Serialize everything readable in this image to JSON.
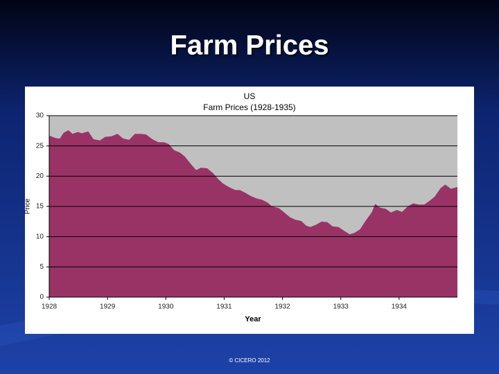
{
  "title": "Farm Prices",
  "footer": "© CICERO 2012",
  "chart_data": {
    "type": "area",
    "title": "US",
    "subtitle": "Farm Prices (1928-1935)",
    "x_label": "Year",
    "y_label": "Price",
    "color": "#993366",
    "plot_background": "#c0c0c0",
    "grid": true,
    "xlim": [
      1928,
      1935
    ],
    "ylim": [
      0,
      30
    ],
    "xticks": [
      1928,
      1929,
      1930,
      1931,
      1932,
      1933,
      1934
    ],
    "yticks": [
      0,
      5,
      10,
      15,
      20,
      25,
      30
    ],
    "x": [
      1928.0,
      1928.11,
      1928.18,
      1928.25,
      1928.33,
      1928.4,
      1928.49,
      1928.56,
      1928.67,
      1928.76,
      1928.87,
      1928.96,
      1929.07,
      1929.17,
      1929.27,
      1929.37,
      1929.47,
      1929.57,
      1929.66,
      1929.77,
      1929.87,
      1929.97,
      1930.05,
      1930.14,
      1930.24,
      1930.32,
      1930.43,
      1930.52,
      1930.6,
      1930.71,
      1930.81,
      1930.9,
      1930.98,
      1931.08,
      1931.19,
      1931.27,
      1931.37,
      1931.46,
      1931.56,
      1931.65,
      1931.75,
      1931.82,
      1931.94,
      1932.03,
      1932.13,
      1932.22,
      1932.32,
      1932.41,
      1932.48,
      1932.58,
      1932.67,
      1932.77,
      1932.86,
      1932.96,
      1933.05,
      1933.15,
      1933.23,
      1933.33,
      1933.43,
      1933.53,
      1933.59,
      1933.67,
      1933.77,
      1933.86,
      1933.96,
      1934.05,
      1934.15,
      1934.24,
      1934.34,
      1934.43,
      1934.52,
      1934.61,
      1934.71,
      1934.79,
      1934.89,
      1935.0
    ],
    "values": [
      26.7,
      26.3,
      26.2,
      27.2,
      27.6,
      27.0,
      27.3,
      27.1,
      27.4,
      26.1,
      25.9,
      26.5,
      26.6,
      27.0,
      26.2,
      26.0,
      27.0,
      27.0,
      26.9,
      26.1,
      25.6,
      25.6,
      25.3,
      24.3,
      23.9,
      23.3,
      22.0,
      21.0,
      21.4,
      21.3,
      20.5,
      19.5,
      18.8,
      18.2,
      17.7,
      17.7,
      17.2,
      16.7,
      16.3,
      16.1,
      15.6,
      15.0,
      14.7,
      14.0,
      13.2,
      12.8,
      12.6,
      11.8,
      11.6,
      12.0,
      12.5,
      12.4,
      11.7,
      11.6,
      11.0,
      10.4,
      10.6,
      11.2,
      12.7,
      14.0,
      15.4,
      14.8,
      14.6,
      14.0,
      14.4,
      14.1,
      15.0,
      15.5,
      15.3,
      15.3,
      15.9,
      16.6,
      18.0,
      18.6,
      17.9,
      18.2
    ]
  }
}
